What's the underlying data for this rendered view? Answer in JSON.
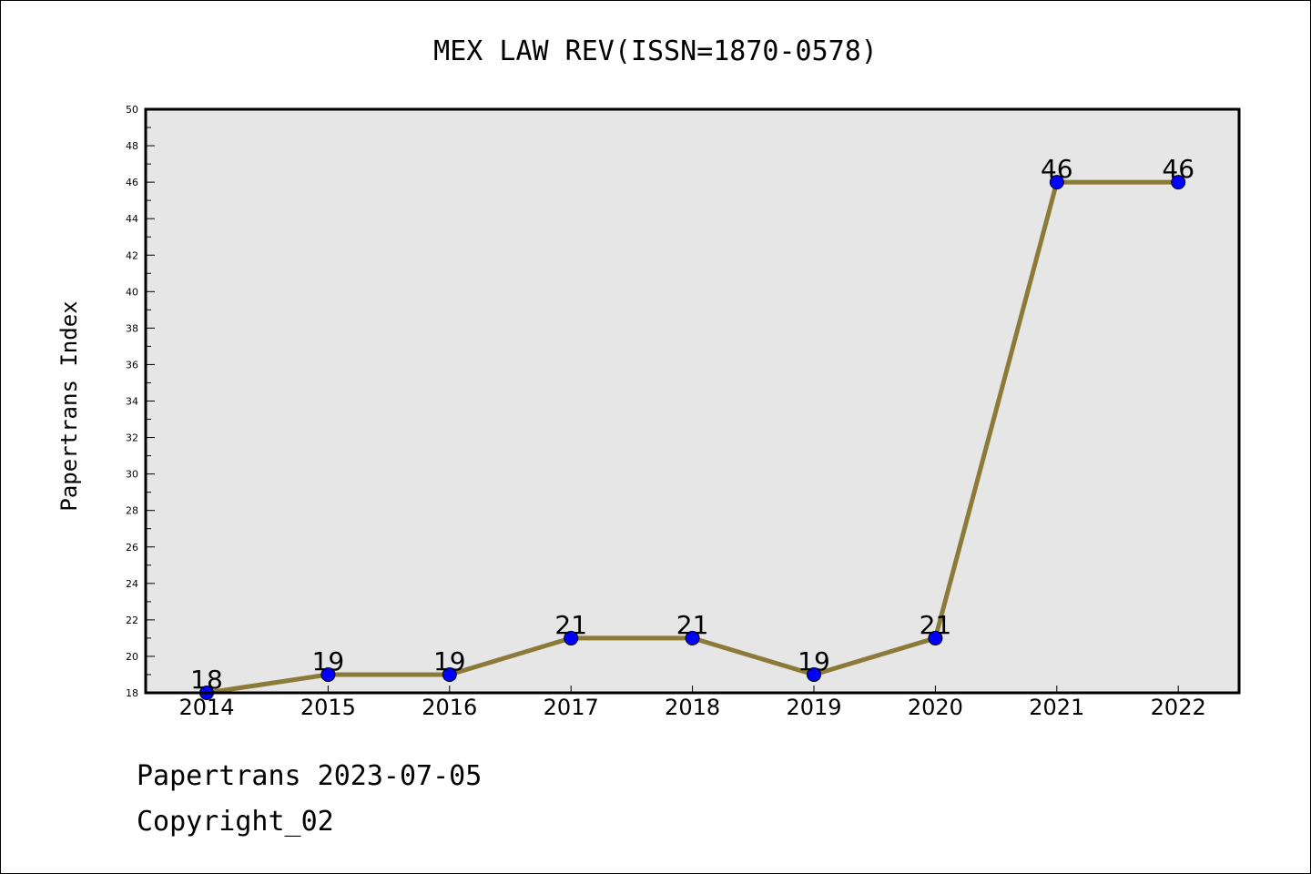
{
  "chart_data": {
    "type": "line",
    "title": "MEX LAW REV(ISSN=1870-0578)",
    "xlabel": "",
    "ylabel": "Papertrans Index",
    "categories": [
      "2014",
      "2015",
      "2016",
      "2017",
      "2018",
      "2019",
      "2020",
      "2021",
      "2022"
    ],
    "series": [
      {
        "values": [
          18,
          19,
          19,
          21,
          21,
          19,
          21,
          46,
          46
        ]
      }
    ],
    "data_labels": [
      "18",
      "19",
      "19",
      "21",
      "21",
      "19",
      "21",
      "46",
      "46"
    ],
    "ylim": [
      18,
      50
    ],
    "yticks": [
      "18",
      "20",
      "22",
      "24",
      "26",
      "28",
      "30",
      "32",
      "34",
      "36",
      "38",
      "40",
      "42",
      "44",
      "46",
      "48",
      "50"
    ],
    "grid": false,
    "legend": "none",
    "colors": {
      "line": "#8c7a38",
      "marker": "#0000ff",
      "plot_background": "#e6e6e6"
    }
  },
  "footer": {
    "line1": "Papertrans 2023-07-05",
    "line2": "Copyright_02"
  }
}
